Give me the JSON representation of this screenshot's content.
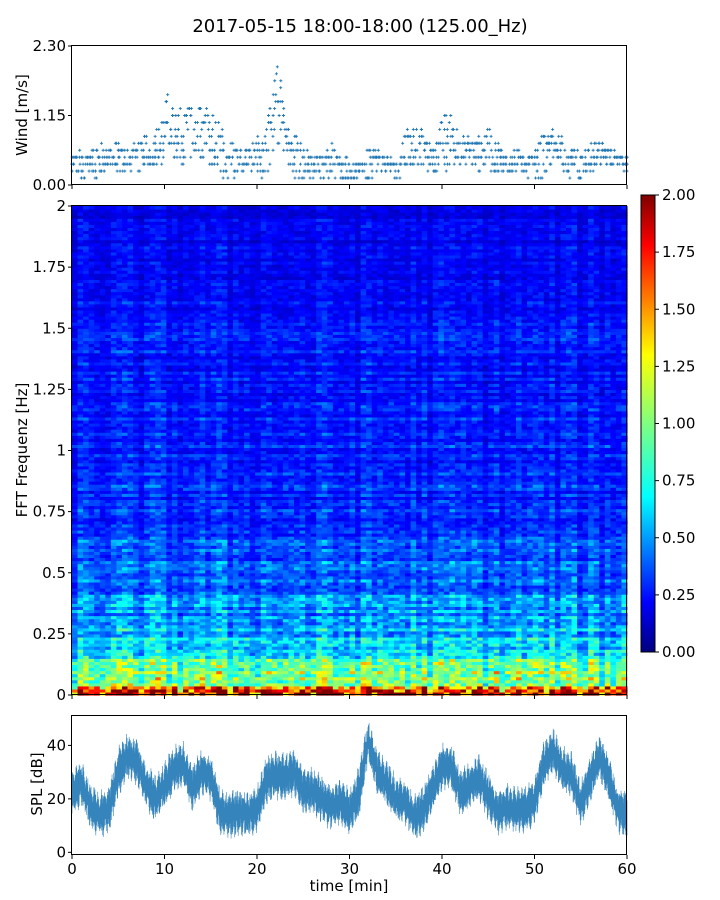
{
  "title": "2017-05-15 18:00-18:00 (125.00_Hz)",
  "chart_data": [
    {
      "id": "wind",
      "type": "scatter",
      "ylabel": "Wind [m/s]",
      "xlim": [
        0,
        60
      ],
      "ylim": [
        0,
        2.3
      ],
      "yticks": [
        "0.00",
        "1.15",
        "2.30"
      ],
      "ytick_values": [
        0,
        1.15,
        2.3
      ],
      "color": "#1f77b4",
      "marker": "+",
      "quantization_step": 0.115,
      "envelope": {
        "x": [
          0,
          2,
          4,
          6,
          8,
          9,
          10,
          10.5,
          11,
          12,
          13,
          14,
          15,
          16,
          17,
          18,
          19,
          20,
          21,
          22,
          22.5,
          23,
          24,
          25,
          26,
          27,
          28,
          29,
          30,
          31,
          32,
          33,
          34,
          35,
          36,
          37,
          38,
          39,
          40,
          41,
          42,
          43,
          44,
          45,
          46,
          47,
          48,
          49,
          50,
          51,
          52,
          53,
          54,
          55,
          56,
          57,
          58,
          59,
          60
        ],
        "min": [
          0.1,
          0.1,
          0.2,
          0.2,
          0.3,
          0.3,
          0.4,
          0.5,
          0.4,
          0.3,
          0.3,
          0.3,
          0.3,
          0.2,
          0.1,
          0.2,
          0.3,
          0.2,
          0.1,
          0.5,
          0.6,
          0.3,
          0.1,
          0.1,
          0.1,
          0.1,
          0.1,
          0.1,
          0.1,
          0.1,
          0.1,
          0.2,
          0.2,
          0.1,
          0.2,
          0.3,
          0.3,
          0.2,
          0.2,
          0.3,
          0.3,
          0.3,
          0.2,
          0.3,
          0.1,
          0.2,
          0.2,
          0.2,
          0.1,
          0.1,
          0.3,
          0.3,
          0.1,
          0.1,
          0.2,
          0.3,
          0.3,
          0.3,
          0.2
        ],
        "max": [
          0.5,
          0.6,
          0.7,
          0.6,
          0.8,
          0.9,
          1.2,
          1.8,
          1.4,
          1.3,
          1.4,
          1.3,
          1.2,
          1.0,
          0.8,
          0.7,
          0.6,
          0.8,
          1.0,
          1.8,
          2.3,
          1.3,
          0.9,
          0.6,
          0.5,
          0.5,
          0.7,
          0.5,
          0.4,
          0.4,
          0.6,
          0.6,
          0.5,
          0.4,
          0.9,
          1.0,
          0.9,
          0.6,
          1.1,
          1.2,
          0.9,
          0.8,
          0.8,
          0.9,
          0.7,
          0.6,
          0.6,
          0.5,
          0.6,
          0.9,
          0.9,
          0.8,
          0.6,
          0.5,
          0.7,
          0.7,
          0.6,
          0.5,
          0.5
        ]
      }
    },
    {
      "id": "spectrogram",
      "type": "heatmap",
      "ylabel": "FFT Frequenz [Hz]",
      "xlim": [
        0,
        60
      ],
      "ylim": [
        0,
        2
      ],
      "yticks": [
        "0",
        "0.25",
        "0.5",
        "0.75",
        "1",
        "1.25",
        "1.5",
        "1.75",
        "2"
      ],
      "ytick_values": [
        0,
        0.25,
        0.5,
        0.75,
        1,
        1.25,
        1.5,
        1.75,
        2
      ],
      "colormap": "jet",
      "color_range": [
        0,
        2
      ],
      "colorbar_ticks": [
        "0.00",
        "0.25",
        "0.50",
        "0.75",
        "1.00",
        "1.25",
        "1.50",
        "1.75",
        "2.00"
      ],
      "colorbar_values": [
        0,
        0.25,
        0.5,
        0.75,
        1,
        1.25,
        1.5,
        1.75,
        2
      ],
      "mean_profile": {
        "freq": [
          0,
          0.02,
          0.05,
          0.1,
          0.15,
          0.2,
          0.3,
          0.4,
          0.5,
          0.75,
          1.0,
          1.5,
          1.8,
          2.0
        ],
        "value": [
          1.8,
          1.55,
          1.2,
          0.95,
          0.75,
          0.62,
          0.5,
          0.42,
          0.36,
          0.3,
          0.27,
          0.24,
          0.2,
          0.17
        ]
      }
    },
    {
      "id": "spl",
      "type": "line",
      "ylabel": "SPL [dB]",
      "xlabel": "time [min]",
      "xlim": [
        0,
        60
      ],
      "ylim": [
        -1,
        51
      ],
      "xticks": [
        "0",
        "10",
        "20",
        "30",
        "40",
        "50",
        "60"
      ],
      "xtick_values": [
        0,
        10,
        20,
        30,
        40,
        50,
        60
      ],
      "yticks": [
        "0",
        "20",
        "40"
      ],
      "ytick_values": [
        0,
        20,
        40
      ],
      "color": "#1f77b4",
      "envelope": {
        "x": [
          0,
          1,
          2,
          3,
          4,
          5,
          6,
          7,
          8,
          9,
          10,
          11,
          12,
          13,
          14,
          15,
          16,
          17,
          18,
          19,
          20,
          21,
          22,
          23,
          24,
          25,
          26,
          27,
          28,
          29,
          30,
          31,
          32,
          33,
          34,
          35,
          36,
          37,
          38,
          39,
          40,
          41,
          42,
          43,
          44,
          45,
          46,
          47,
          48,
          49,
          50,
          51,
          52,
          53,
          54,
          55,
          56,
          57,
          58,
          59,
          60
        ],
        "mid": [
          22,
          26,
          17,
          14,
          16,
          30,
          36,
          34,
          25,
          20,
          25,
          31,
          33,
          24,
          30,
          28,
          15,
          14,
          15,
          14,
          16,
          27,
          29,
          28,
          30,
          23,
          23,
          20,
          17,
          19,
          15,
          22,
          42,
          30,
          26,
          20,
          19,
          13,
          16,
          24,
          32,
          32,
          22,
          25,
          28,
          21,
          15,
          17,
          16,
          16,
          19,
          33,
          38,
          31,
          29,
          18,
          27,
          36,
          28,
          16,
          14
        ],
        "spread": [
          6,
          6,
          6,
          6,
          6,
          7,
          6,
          6,
          6,
          6,
          6,
          6,
          6,
          6,
          6,
          6,
          6,
          6,
          6,
          6,
          6,
          6,
          7,
          6,
          6,
          6,
          6,
          6,
          6,
          6,
          6,
          7,
          6,
          6,
          6,
          6,
          6,
          6,
          6,
          6,
          6,
          6,
          6,
          6,
          6,
          6,
          6,
          6,
          6,
          6,
          6,
          6,
          6,
          6,
          6,
          6,
          6,
          6,
          6,
          6,
          6
        ]
      }
    }
  ]
}
